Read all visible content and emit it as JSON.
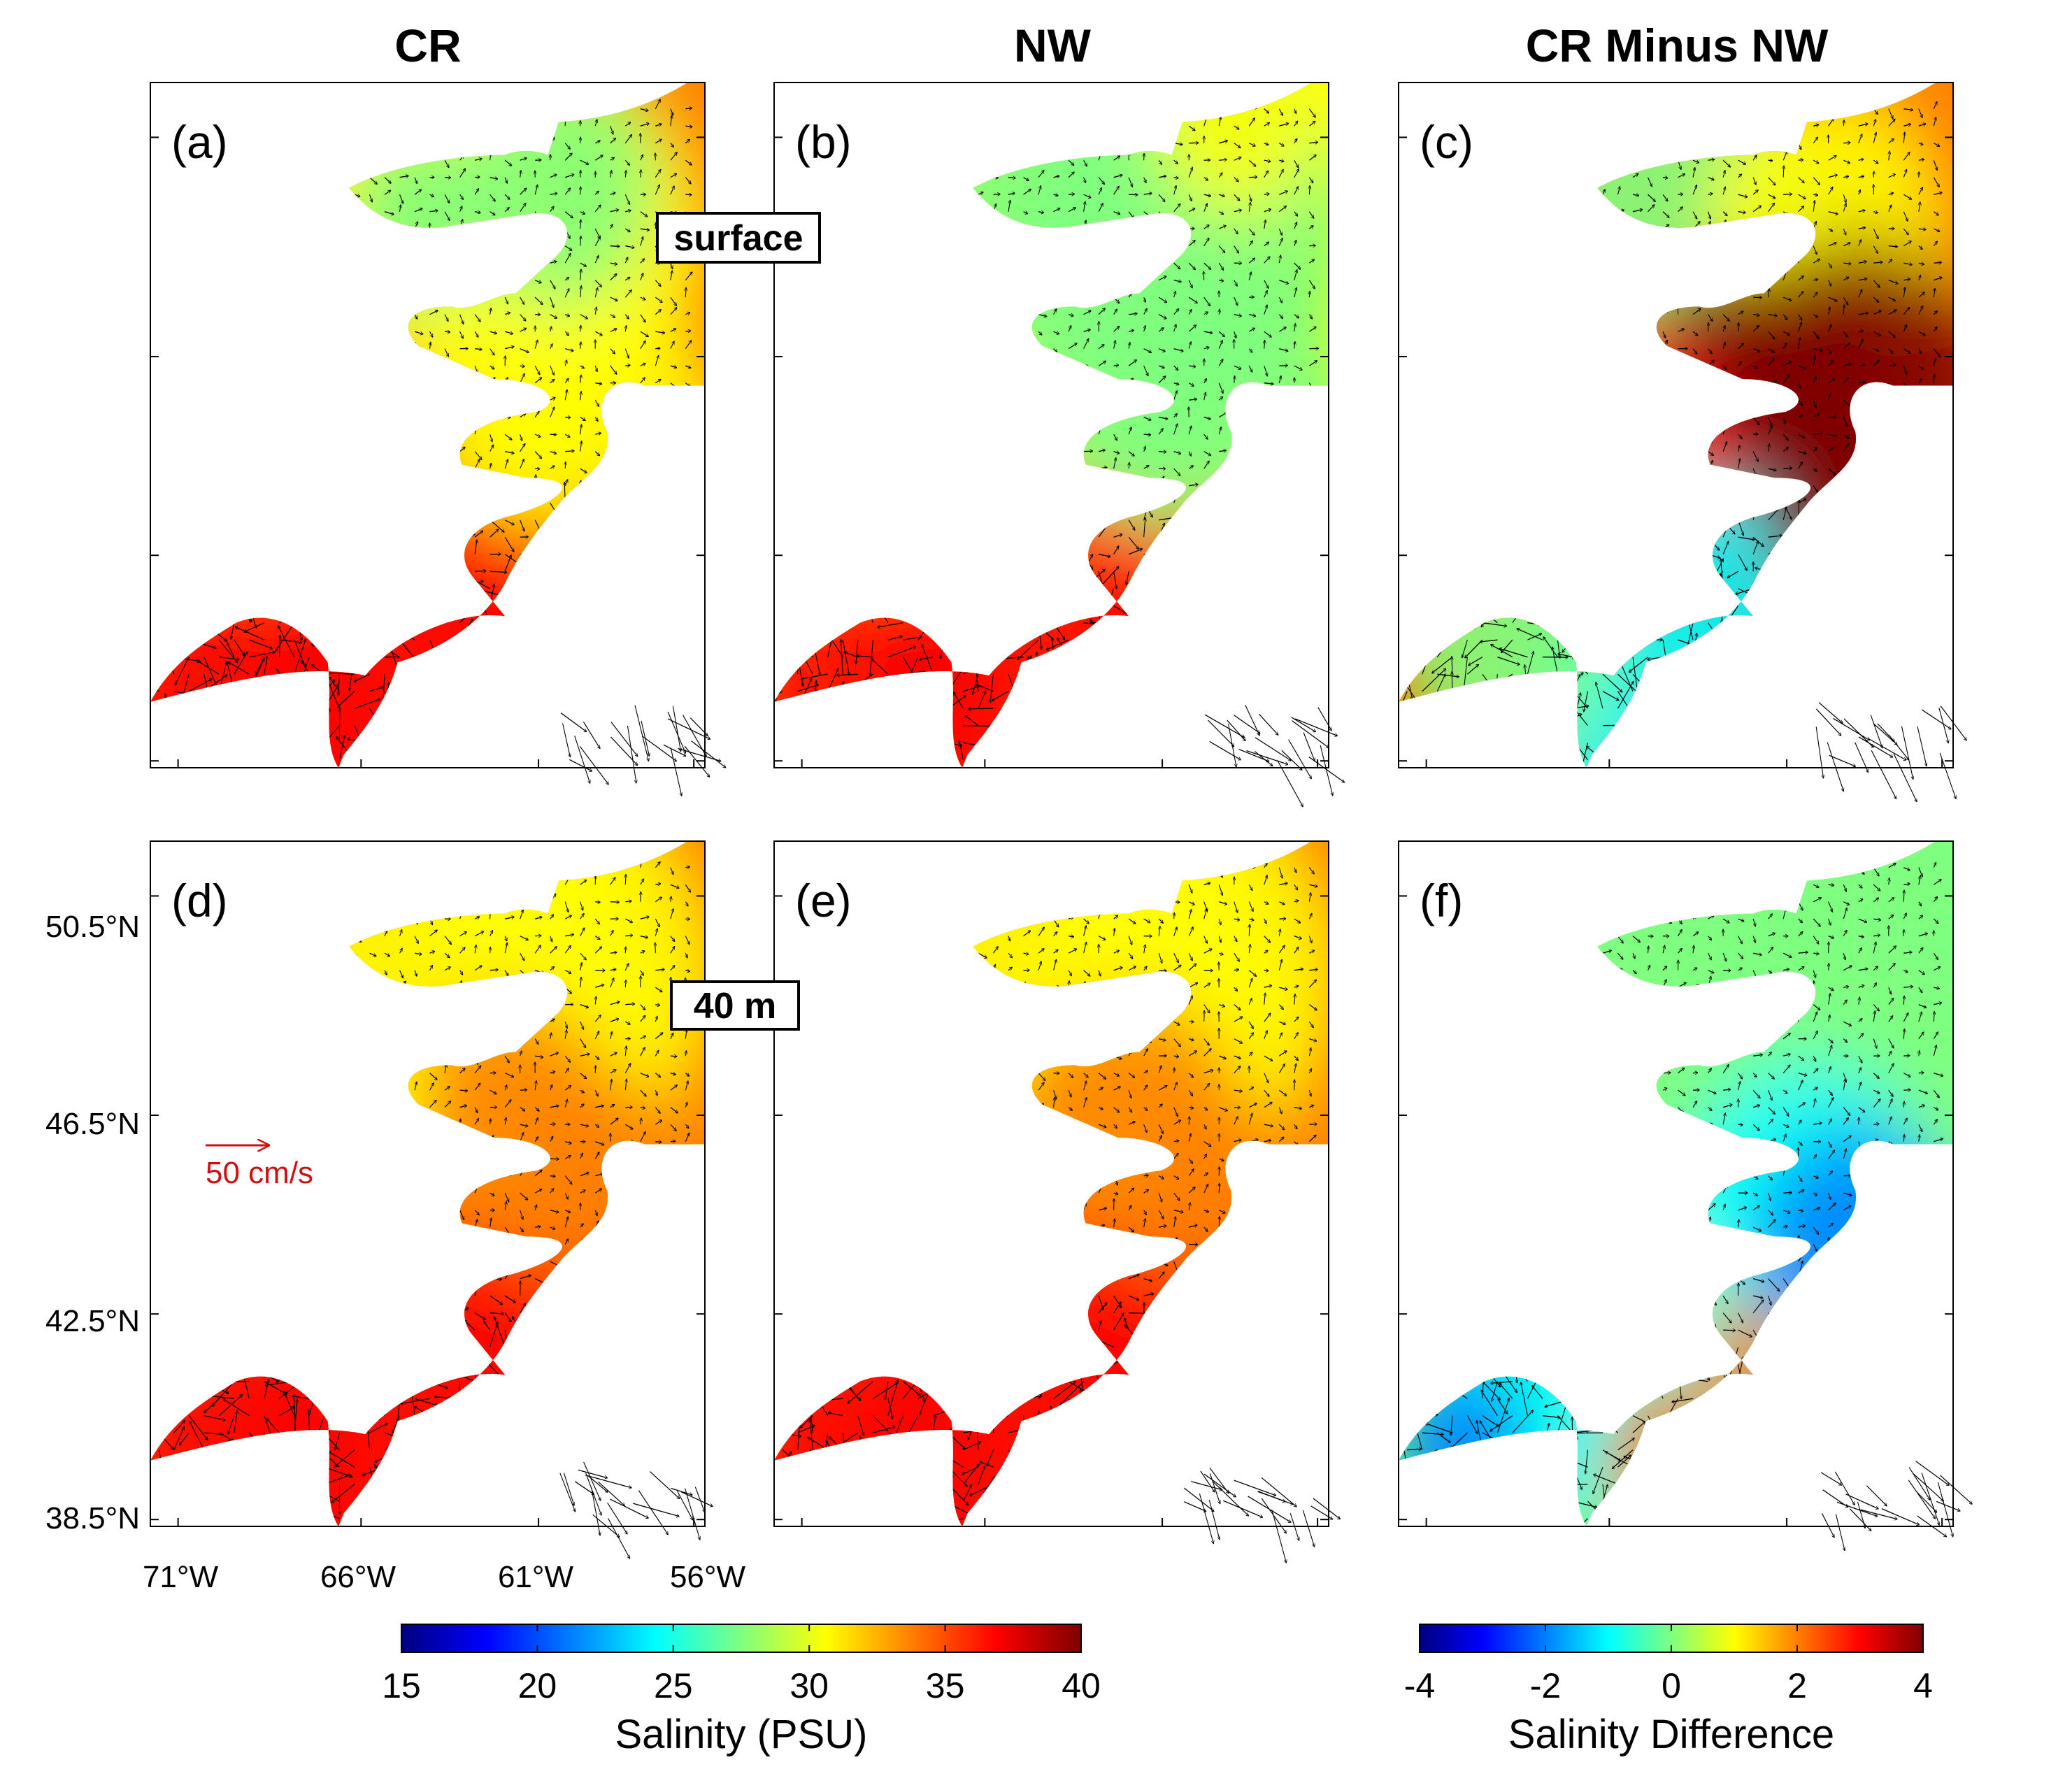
{
  "columns": [
    "CR",
    "NW",
    "CR Minus NW"
  ],
  "panels": [
    {
      "label": "(a)",
      "kind": "salinity",
      "depth": "surface",
      "scheme": "crSurf"
    },
    {
      "label": "(b)",
      "kind": "salinity",
      "depth": "surface",
      "scheme": "nwSurf"
    },
    {
      "label": "(c)",
      "kind": "difference",
      "depth": "surface",
      "scheme": "diffSurf"
    },
    {
      "label": "(d)",
      "kind": "salinity",
      "depth": "40 m",
      "scheme": "cr40"
    },
    {
      "label": "(e)",
      "kind": "salinity",
      "depth": "40 m",
      "scheme": "nw40"
    },
    {
      "label": "(f)",
      "kind": "difference",
      "depth": "40 m",
      "scheme": "diff40"
    }
  ],
  "depth_tags": {
    "surface": "surface",
    "deep": "40 m"
  },
  "axes": {
    "lat_ticks": [
      "50.5°N",
      "46.5°N",
      "42.5°N",
      "38.5°N"
    ],
    "lon_ticks": [
      "71°W",
      "66°W",
      "61°W",
      "56°W"
    ],
    "lat_values": [
      50.5,
      46.5,
      42.5,
      38.5
    ],
    "lon_values": [
      -71,
      -66,
      -61,
      -56
    ]
  },
  "reference_vector": {
    "label": "50 cm/s",
    "speed_cm_s": 50,
    "color": "#d01010"
  },
  "colorbars": {
    "salinity": {
      "title": "Salinity (PSU)",
      "min": 15,
      "max": 40,
      "ticks": [
        "15",
        "20",
        "25",
        "30",
        "35",
        "40"
      ]
    },
    "difference": {
      "title": "Salinity Difference",
      "min": -4,
      "max": 4,
      "ticks": [
        "-4",
        "-2",
        "0",
        "2",
        "4"
      ]
    }
  },
  "colors": {
    "jet": [
      "#00007f",
      "#0000ff",
      "#007fff",
      "#00ffff",
      "#7fff7f",
      "#ffff00",
      "#ff7f00",
      "#ff0000",
      "#7f0000"
    ],
    "land": "#ffffff",
    "arrow": "#000000"
  }
}
